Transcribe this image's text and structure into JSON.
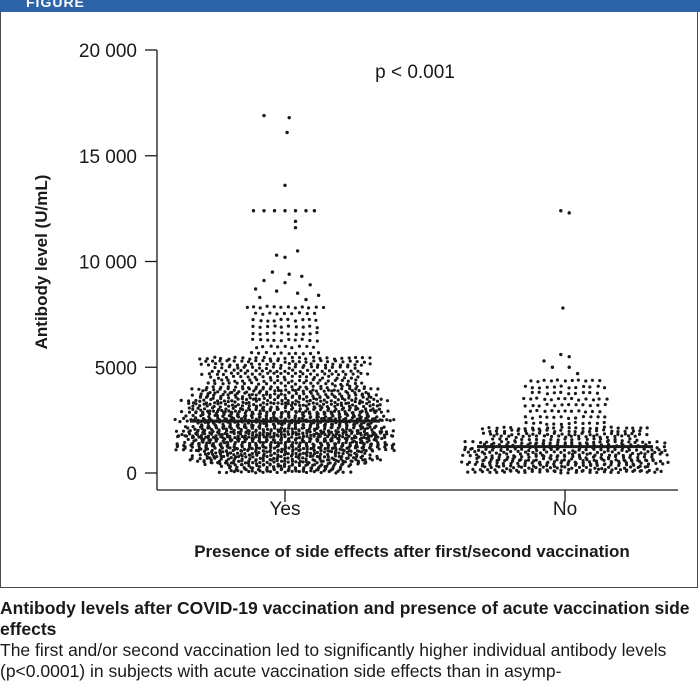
{
  "header": {
    "label": "FIGURE"
  },
  "chart_data": {
    "type": "scatter",
    "subtype": "dot-plot",
    "title": "",
    "xlabel": "Presence of side effects after first/second vaccination",
    "ylabel": "Antibody level (U/mL)",
    "ylim": [
      0,
      20000
    ],
    "yticks": [
      0,
      5000,
      10000,
      15000,
      20000
    ],
    "ytick_labels": [
      "0",
      "5000",
      "10 000",
      "15 000",
      "20 000"
    ],
    "categories": [
      "Yes",
      "No"
    ],
    "annotation": "p < 0.001",
    "point_color": "#1a1a1a",
    "series": [
      {
        "category": "Yes",
        "median": 2450,
        "points": [
          [
            -0.1,
            16900
          ],
          [
            0.02,
            16800
          ],
          [
            0.01,
            16100
          ],
          [
            0.0,
            13600
          ],
          [
            -0.15,
            12400
          ],
          [
            -0.1,
            12400
          ],
          [
            -0.05,
            12400
          ],
          [
            0.0,
            12400
          ],
          [
            0.05,
            12400
          ],
          [
            0.1,
            12400
          ],
          [
            0.14,
            12400
          ],
          [
            0.05,
            11900
          ],
          [
            0.05,
            11600
          ],
          [
            0.06,
            10500
          ],
          [
            -0.04,
            10300
          ],
          [
            0.0,
            10200
          ],
          [
            -0.06,
            9500
          ],
          [
            0.02,
            9400
          ],
          [
            0.08,
            9300
          ],
          [
            -0.1,
            9100
          ],
          [
            0.0,
            9000
          ],
          [
            0.12,
            8900
          ],
          [
            -0.14,
            8700
          ],
          [
            -0.04,
            8600
          ],
          [
            0.06,
            8500
          ],
          [
            0.16,
            8400
          ],
          [
            -0.12,
            8300
          ],
          [
            0.1,
            8200
          ]
        ],
        "bands": [
          [
            5500,
            8000,
            8,
            0.16
          ],
          [
            4000,
            5500,
            10,
            0.38
          ],
          [
            3000,
            4000,
            10,
            0.44
          ],
          [
            2000,
            3000,
            14,
            0.46
          ],
          [
            1000,
            2000,
            16,
            0.46
          ],
          [
            400,
            1000,
            8,
            0.4
          ],
          [
            0,
            400,
            5,
            0.3
          ]
        ]
      },
      {
        "category": "No",
        "median": 1250,
        "points": [
          [
            -0.02,
            12400
          ],
          [
            0.02,
            12300
          ],
          [
            -0.01,
            7800
          ],
          [
            -0.02,
            5600
          ],
          [
            0.02,
            5500
          ],
          [
            -0.1,
            5300
          ],
          [
            -0.06,
            5000
          ],
          [
            0.02,
            5000
          ],
          [
            0.06,
            4700
          ]
        ],
        "bands": [
          [
            2200,
            4500,
            8,
            0.18
          ],
          [
            1500,
            2200,
            5,
            0.36
          ],
          [
            800,
            1500,
            6,
            0.44
          ],
          [
            0,
            800,
            8,
            0.44
          ]
        ]
      }
    ]
  },
  "caption": {
    "title": "Antibody levels after COVID-19 vaccination and presence of acute vaccination side effects",
    "body": "The first and/or second vaccination led to significantly higher individual antibody levels (p<0.0001) in subjects with acute vaccination side effects than in asymp-"
  }
}
